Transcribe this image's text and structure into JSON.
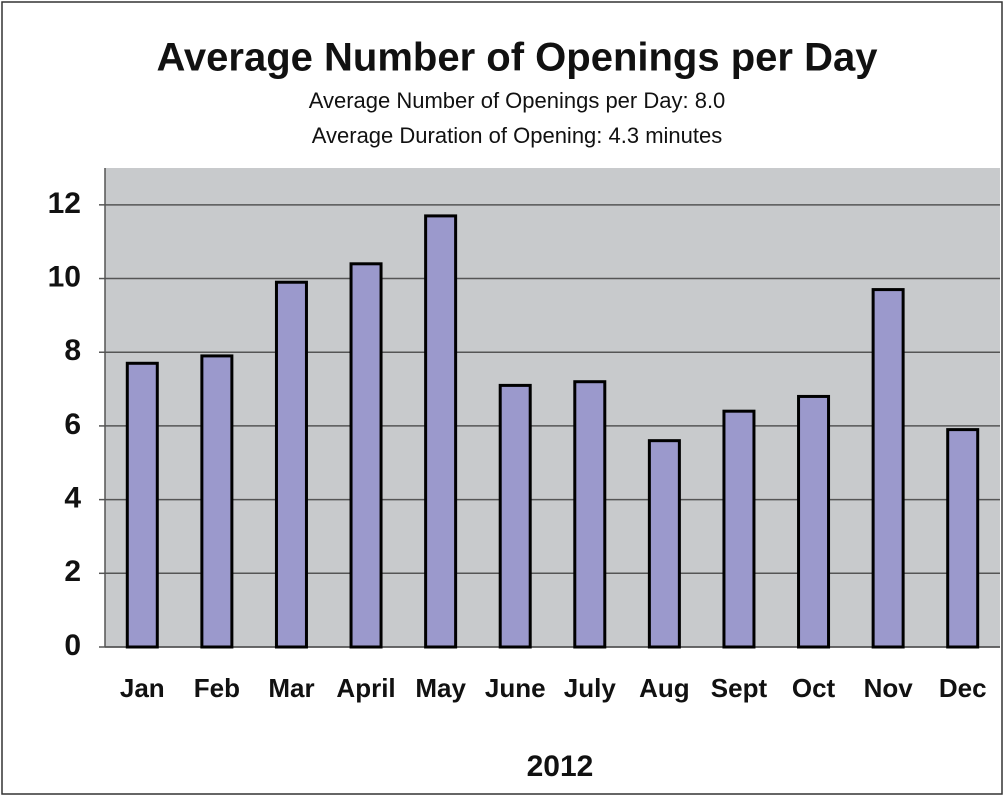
{
  "chart_data": {
    "type": "bar",
    "title": "Average Number of Openings per Day",
    "subtitle": [
      "Average Number of Openings per Day:  8.0",
      "Average Duration of Opening:  4.3 minutes"
    ],
    "x_label": "2012",
    "categories": [
      "Jan",
      "Feb",
      "Mar",
      "April",
      "May",
      "June",
      "July",
      "Aug",
      "Sept",
      "Oct",
      "Nov",
      "Dec"
    ],
    "values": [
      7.7,
      7.9,
      9.9,
      10.4,
      11.7,
      7.1,
      7.2,
      5.6,
      6.4,
      6.8,
      9.7,
      5.9
    ],
    "color": "#9b99cc",
    "ylim": [
      0,
      13
    ],
    "yticks": [
      0,
      2,
      4,
      6,
      8,
      10,
      12
    ],
    "grid": true
  }
}
